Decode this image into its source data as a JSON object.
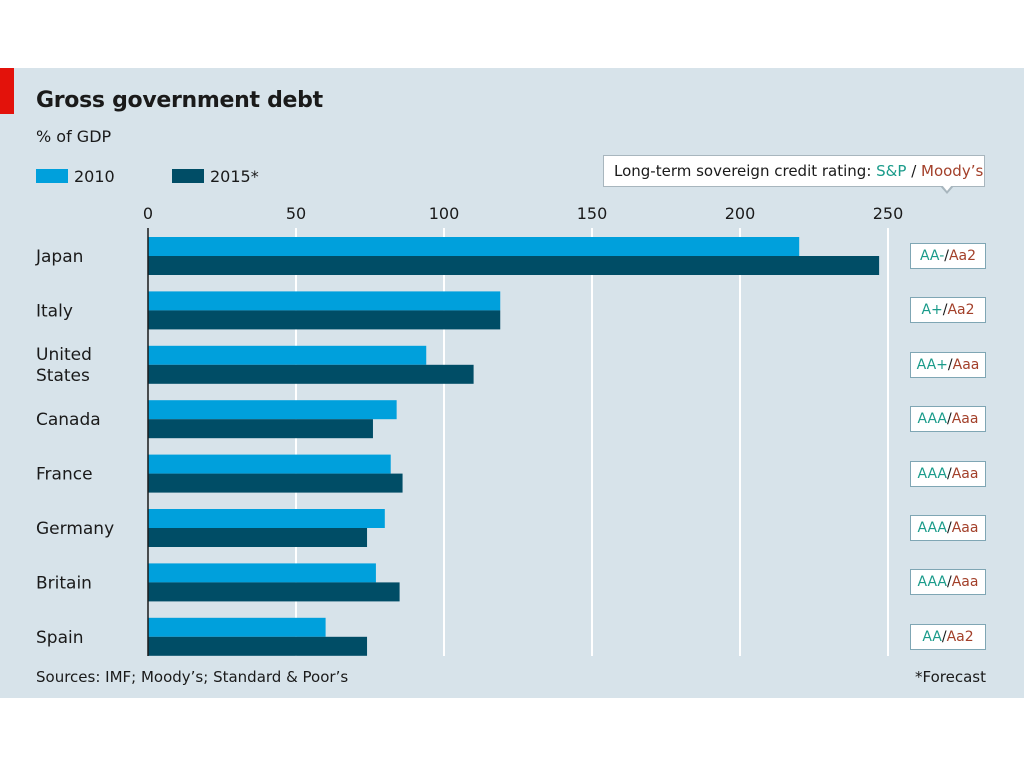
{
  "chart_data": {
    "type": "bar",
    "orientation": "horizontal",
    "title": "Gross government debt",
    "subtitle": "% of GDP",
    "categories": [
      "Japan",
      "Italy",
      "United States",
      "Canada",
      "France",
      "Germany",
      "Britain",
      "Spain"
    ],
    "series": [
      {
        "name": "2010",
        "color": "#00a0dc",
        "values": [
          220,
          119,
          94,
          84,
          82,
          80,
          77,
          60
        ]
      },
      {
        "name": "2015*",
        "color": "#004d66",
        "values": [
          247,
          119,
          110,
          76,
          86,
          74,
          85,
          74
        ]
      }
    ],
    "xlim": [
      0,
      250
    ],
    "x_ticks": [
      0,
      50,
      100,
      150,
      200,
      250
    ],
    "grid": true,
    "legend_position": "top-left",
    "ratings_header": {
      "prefix": "Long-term sovereign credit rating: ",
      "sp_label": "S&P",
      "separator": " / ",
      "moodys_label": "Moody’s"
    },
    "ratings": [
      {
        "sp": "AA-",
        "moodys": "Aa2"
      },
      {
        "sp": "A+",
        "moodys": "Aa2"
      },
      {
        "sp": "AA+",
        "moodys": "Aaa"
      },
      {
        "sp": "AAA",
        "moodys": "Aaa"
      },
      {
        "sp": "AAA",
        "moodys": "Aaa"
      },
      {
        "sp": "AAA",
        "moodys": "Aaa"
      },
      {
        "sp": "AAA",
        "moodys": "Aaa"
      },
      {
        "sp": "AA",
        "moodys": "Aa2"
      }
    ],
    "source": "Sources: IMF; Moody’s; Standard & Poor’s",
    "footnote": "*Forecast"
  },
  "colors": {
    "background": "#d7e3ea",
    "accent_red": "#e3120b",
    "sp_text": "#1a9b8a",
    "moodys_text": "#a3402a"
  }
}
